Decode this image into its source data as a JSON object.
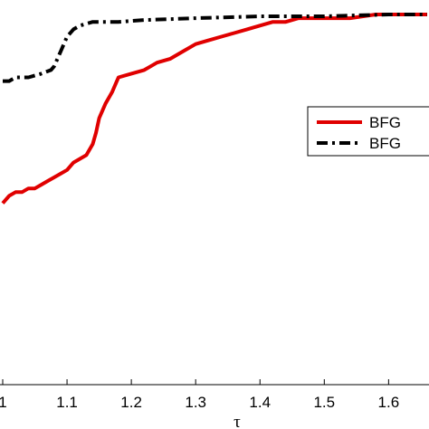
{
  "chart_data": {
    "type": "line",
    "xlabel": "τ",
    "ylabel": "",
    "title": "",
    "x_ticks": [
      "1",
      "1.1",
      "1.2",
      "1.3",
      "1.4",
      "1.5",
      "1.6"
    ],
    "xlim": [
      1.0,
      1.66
    ],
    "ylim": [
      0.0,
      1.0
    ],
    "grid": false,
    "legend_position": "right",
    "series": [
      {
        "name": "BFG",
        "color": "#e00000",
        "style": "solid",
        "points": [
          [
            1.0,
            0.49
          ],
          [
            1.01,
            0.51
          ],
          [
            1.02,
            0.52
          ],
          [
            1.03,
            0.52
          ],
          [
            1.04,
            0.53
          ],
          [
            1.05,
            0.53
          ],
          [
            1.06,
            0.54
          ],
          [
            1.07,
            0.55
          ],
          [
            1.08,
            0.56
          ],
          [
            1.09,
            0.57
          ],
          [
            1.1,
            0.58
          ],
          [
            1.11,
            0.6
          ],
          [
            1.12,
            0.61
          ],
          [
            1.13,
            0.62
          ],
          [
            1.14,
            0.65
          ],
          [
            1.145,
            0.68
          ],
          [
            1.15,
            0.72
          ],
          [
            1.16,
            0.76
          ],
          [
            1.17,
            0.79
          ],
          [
            1.18,
            0.83
          ],
          [
            1.2,
            0.84
          ],
          [
            1.22,
            0.85
          ],
          [
            1.23,
            0.86
          ],
          [
            1.24,
            0.87
          ],
          [
            1.26,
            0.88
          ],
          [
            1.28,
            0.9
          ],
          [
            1.3,
            0.92
          ],
          [
            1.32,
            0.93
          ],
          [
            1.34,
            0.94
          ],
          [
            1.36,
            0.95
          ],
          [
            1.38,
            0.96
          ],
          [
            1.4,
            0.97
          ],
          [
            1.42,
            0.98
          ],
          [
            1.44,
            0.98
          ],
          [
            1.46,
            0.99
          ],
          [
            1.5,
            0.99
          ],
          [
            1.54,
            0.99
          ],
          [
            1.58,
            1.0
          ],
          [
            1.62,
            1.0
          ],
          [
            1.66,
            1.0
          ]
        ]
      },
      {
        "name": "BFG",
        "color": "#000000",
        "style": "dashdot",
        "points": [
          [
            1.0,
            0.82
          ],
          [
            1.01,
            0.82
          ],
          [
            1.02,
            0.83
          ],
          [
            1.04,
            0.83
          ],
          [
            1.06,
            0.84
          ],
          [
            1.075,
            0.85
          ],
          [
            1.08,
            0.86
          ],
          [
            1.09,
            0.9
          ],
          [
            1.1,
            0.94
          ],
          [
            1.11,
            0.96
          ],
          [
            1.12,
            0.97
          ],
          [
            1.14,
            0.98
          ],
          [
            1.18,
            0.98
          ],
          [
            1.22,
            0.985
          ],
          [
            1.3,
            0.99
          ],
          [
            1.4,
            0.995
          ],
          [
            1.5,
            0.995
          ],
          [
            1.6,
            1.0
          ],
          [
            1.66,
            1.0
          ]
        ]
      }
    ]
  }
}
